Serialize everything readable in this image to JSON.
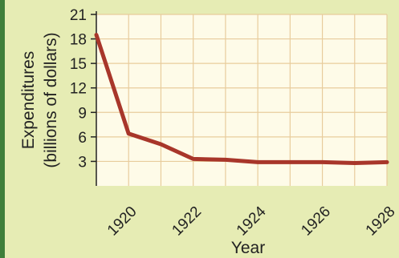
{
  "chart_data": {
    "type": "line",
    "title": "",
    "xlabel": "Year",
    "ylabel": "Expenditures\n(billions of dollars)",
    "ylabel_lines": [
      "Expenditures",
      "(billions of dollars)"
    ],
    "xlim": [
      1919,
      1928
    ],
    "ylim": [
      0,
      21
    ],
    "yticks": [
      3,
      6,
      9,
      12,
      15,
      18,
      21
    ],
    "xticks": [
      1920,
      1922,
      1924,
      1926,
      1928
    ],
    "grid": true,
    "legend": "none",
    "series": [
      {
        "x": [
          1919,
          1920,
          1921,
          1922,
          1923,
          1924,
          1925,
          1926,
          1927,
          1928
        ],
        "values": [
          18.5,
          6.4,
          5.1,
          3.3,
          3.2,
          2.9,
          2.9,
          2.9,
          2.8,
          2.9
        ],
        "color": "#a8362a"
      }
    ],
    "colors": {
      "plot_bg": "#fefbe8",
      "grid": "#e8cc9c",
      "page_bg": "#e6ecb4",
      "axis": "#222222"
    }
  }
}
